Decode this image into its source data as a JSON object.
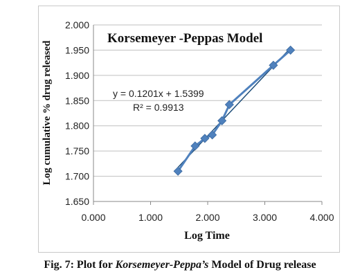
{
  "chart_data": {
    "type": "scatter",
    "title": "Korsemeyer -Peppas Model",
    "xlabel": "Log Time",
    "ylabel": "Log cumulative % drug released",
    "xlim": [
      0,
      4
    ],
    "ylim": [
      1.65,
      2.0
    ],
    "xticks": [
      "0.000",
      "1.000",
      "2.000",
      "3.000",
      "4.000"
    ],
    "yticks": [
      "1.650",
      "1.700",
      "1.750",
      "1.800",
      "1.850",
      "1.900",
      "1.950",
      "2.000"
    ],
    "grid": "horizontal",
    "series": [
      {
        "points": [
          {
            "x": 1.48,
            "y": 1.71
          },
          {
            "x": 1.78,
            "y": 1.76
          },
          {
            "x": 1.95,
            "y": 1.775
          },
          {
            "x": 2.08,
            "y": 1.782
          },
          {
            "x": 2.25,
            "y": 1.81
          },
          {
            "x": 2.38,
            "y": 1.842
          },
          {
            "x": 3.15,
            "y": 1.92
          },
          {
            "x": 3.45,
            "y": 1.95
          }
        ],
        "color": "#4f81bd"
      }
    ],
    "trendline": {
      "slope": 0.1201,
      "intercept": 1.5399,
      "equation": "y = 0.1201x + 1.5399",
      "r2_label": "R² = 0.9913",
      "color": "#1f4e79"
    }
  },
  "caption": {
    "prefix": "Fig. 7: Plot for ",
    "italic": "Korsemeyer-Peppa’s",
    "suffix": " Model of Drug release"
  }
}
